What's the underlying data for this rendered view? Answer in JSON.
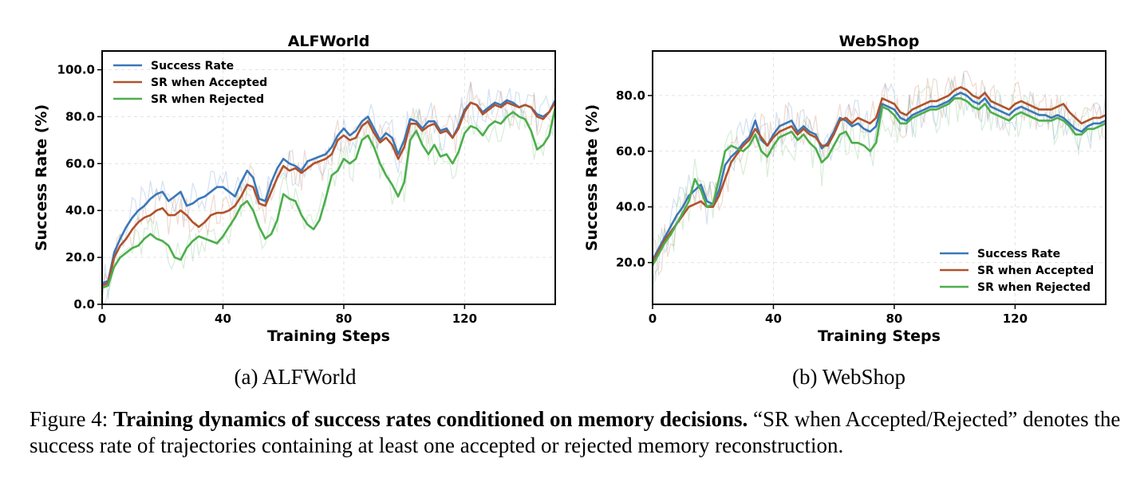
{
  "chart_data": [
    {
      "type": "line",
      "title": "ALFWorld",
      "xlabel": "Training Steps",
      "ylabel": "Success Rate (%)",
      "xlim": [
        0,
        150
      ],
      "ylim": [
        0,
        108
      ],
      "xticks": [
        "0",
        "40",
        "80",
        "120"
      ],
      "yticks": [
        "0.0",
        "20.0",
        "40.0",
        "60.0",
        "80.0",
        "100.0"
      ],
      "legend_position": "upper-left",
      "grid": true,
      "x": [
        0,
        2,
        4,
        6,
        8,
        10,
        12,
        14,
        16,
        18,
        20,
        22,
        24,
        26,
        28,
        30,
        32,
        34,
        36,
        38,
        40,
        42,
        44,
        46,
        48,
        50,
        52,
        54,
        56,
        58,
        60,
        62,
        64,
        66,
        68,
        70,
        72,
        74,
        76,
        78,
        80,
        82,
        84,
        86,
        88,
        90,
        92,
        94,
        96,
        98,
        100,
        102,
        104,
        106,
        108,
        110,
        112,
        114,
        116,
        118,
        120,
        122,
        124,
        126,
        128,
        130,
        132,
        134,
        136,
        138,
        140,
        142,
        144,
        146,
        148,
        150
      ],
      "series": [
        {
          "name": "Success Rate",
          "color": "#3a78b8",
          "values": [
            9,
            10,
            22,
            28,
            33,
            37,
            40,
            42,
            45,
            47,
            48,
            44,
            46,
            48,
            42,
            43,
            45,
            46,
            48,
            50,
            50,
            48,
            46,
            52,
            57,
            54,
            45,
            44,
            52,
            58,
            62,
            60,
            59,
            57,
            61,
            62,
            63,
            64,
            67,
            72,
            75,
            72,
            74,
            78,
            80,
            75,
            70,
            73,
            71,
            64,
            70,
            79,
            78,
            75,
            78,
            78,
            74,
            75,
            71,
            76,
            83,
            86,
            85,
            82,
            84,
            86,
            85,
            87,
            86,
            84,
            85,
            84,
            81,
            80,
            82,
            87
          ]
        },
        {
          "name": "SR when Accepted",
          "color": "#b0522b",
          "values": [
            8,
            9,
            20,
            25,
            28,
            32,
            35,
            37,
            38,
            40,
            41,
            38,
            38,
            40,
            38,
            35,
            33,
            35,
            38,
            39,
            39,
            40,
            42,
            46,
            51,
            50,
            43,
            42,
            48,
            54,
            59,
            57,
            58,
            56,
            58,
            60,
            61,
            62,
            64,
            70,
            72,
            70,
            71,
            76,
            78,
            73,
            69,
            71,
            68,
            62,
            67,
            77,
            77,
            74,
            76,
            77,
            73,
            74,
            71,
            75,
            82,
            86,
            85,
            81,
            83,
            85,
            84,
            86,
            85,
            84,
            85,
            84,
            80,
            79,
            82,
            86
          ]
        },
        {
          "name": "SR when Rejected",
          "color": "#4cae4c",
          "values": [
            7,
            8,
            16,
            20,
            22,
            24,
            25,
            28,
            30,
            28,
            27,
            25,
            20,
            19,
            24,
            27,
            29,
            28,
            27,
            26,
            29,
            33,
            37,
            42,
            44,
            40,
            33,
            28,
            30,
            36,
            47,
            45,
            44,
            38,
            34,
            32,
            36,
            45,
            55,
            57,
            62,
            60,
            62,
            70,
            72,
            67,
            60,
            55,
            51,
            46,
            52,
            70,
            74,
            68,
            64,
            68,
            63,
            64,
            60,
            65,
            73,
            76,
            75,
            72,
            76,
            78,
            77,
            80,
            82,
            80,
            79,
            74,
            66,
            68,
            72,
            84
          ]
        }
      ]
    },
    {
      "type": "line",
      "title": "WebShop",
      "xlabel": "Training Steps",
      "ylabel": "Success Rate (%)",
      "xlim": [
        0,
        150
      ],
      "ylim": [
        5,
        96
      ],
      "xticks": [
        "0",
        "40",
        "80",
        "120"
      ],
      "yticks": [
        "20.0",
        "40.0",
        "60.0",
        "80.0"
      ],
      "legend_position": "lower-right",
      "grid": true,
      "x": [
        0,
        2,
        4,
        6,
        8,
        10,
        12,
        14,
        16,
        18,
        20,
        22,
        24,
        26,
        28,
        30,
        32,
        34,
        36,
        38,
        40,
        42,
        44,
        46,
        48,
        50,
        52,
        54,
        56,
        58,
        60,
        62,
        64,
        66,
        68,
        70,
        72,
        74,
        76,
        78,
        80,
        82,
        84,
        86,
        88,
        90,
        92,
        94,
        96,
        98,
        100,
        102,
        104,
        106,
        108,
        110,
        112,
        114,
        116,
        118,
        120,
        122,
        124,
        126,
        128,
        130,
        132,
        134,
        136,
        138,
        140,
        142,
        144,
        146,
        148,
        150
      ],
      "series": [
        {
          "name": "Success Rate",
          "color": "#3a78b8",
          "values": [
            21,
            25,
            29,
            33,
            37,
            40,
            44,
            46,
            48,
            42,
            41,
            46,
            55,
            58,
            60,
            63,
            65,
            71,
            64,
            62,
            66,
            69,
            70,
            71,
            67,
            69,
            67,
            66,
            61,
            63,
            67,
            72,
            71,
            69,
            70,
            68,
            67,
            69,
            77,
            76,
            75,
            72,
            71,
            73,
            74,
            75,
            76,
            76,
            77,
            78,
            80,
            81,
            80,
            78,
            77,
            79,
            76,
            75,
            74,
            73,
            75,
            76,
            75,
            74,
            73,
            73,
            72,
            73,
            72,
            70,
            68,
            67,
            69,
            70,
            70,
            71
          ]
        },
        {
          "name": "SR when Accepted",
          "color": "#b0522b",
          "values": [
            20,
            24,
            28,
            31,
            34,
            37,
            40,
            41,
            42,
            40,
            40,
            44,
            50,
            56,
            59,
            62,
            64,
            68,
            65,
            62,
            65,
            67,
            68,
            69,
            66,
            68,
            66,
            65,
            62,
            62,
            66,
            71,
            72,
            70,
            72,
            71,
            70,
            72,
            79,
            78,
            77,
            74,
            73,
            75,
            76,
            77,
            78,
            78,
            79,
            80,
            82,
            83,
            82,
            80,
            79,
            81,
            78,
            77,
            76,
            75,
            77,
            78,
            77,
            76,
            75,
            75,
            75,
            76,
            77,
            74,
            72,
            70,
            71,
            72,
            72,
            73
          ]
        },
        {
          "name": "SR when Rejected",
          "color": "#4cae4c",
          "values": [
            19,
            23,
            27,
            30,
            34,
            38,
            42,
            50,
            46,
            40,
            41,
            50,
            60,
            62,
            61,
            60,
            62,
            66,
            60,
            58,
            62,
            65,
            66,
            67,
            64,
            66,
            63,
            61,
            56,
            58,
            62,
            66,
            67,
            63,
            63,
            62,
            60,
            63,
            76,
            75,
            73,
            70,
            70,
            72,
            73,
            74,
            75,
            75,
            76,
            77,
            79,
            79,
            78,
            76,
            75,
            77,
            74,
            73,
            72,
            71,
            73,
            74,
            73,
            72,
            71,
            71,
            71,
            72,
            71,
            69,
            66,
            66,
            68,
            68,
            69,
            70
          ]
        }
      ]
    }
  ],
  "subcaptions": {
    "a": "(a) ALFWorld",
    "b": "(b) WebShop"
  },
  "caption": {
    "prefix": "Figure 4: ",
    "bold": "Training dynamics of success rates conditioned on memory decisions.",
    "rest": " “SR when Accepted/Rejected” denotes the success rate of trajectories containing at least one accepted or rejected memory reconstruction."
  }
}
